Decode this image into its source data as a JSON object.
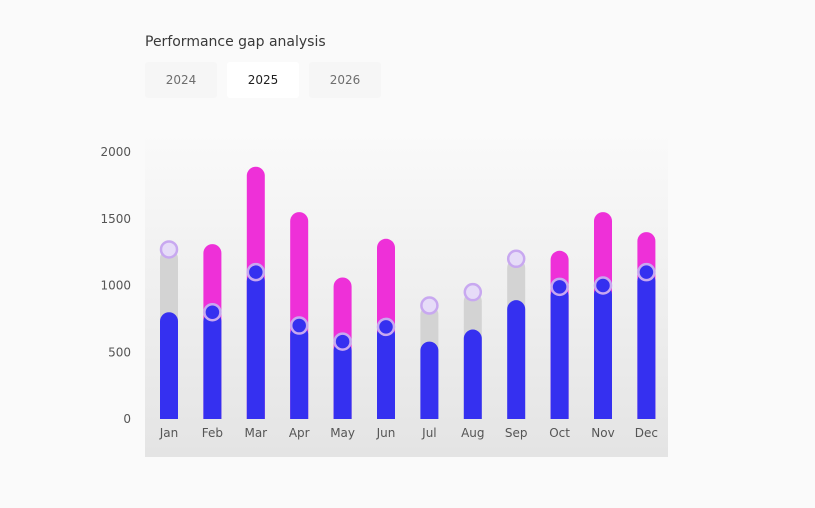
{
  "title": "Performance gap analysis",
  "tabs": [
    {
      "label": "2024",
      "active": false
    },
    {
      "label": "2025",
      "active": true
    },
    {
      "label": "2026",
      "active": false
    }
  ],
  "colors": {
    "actual": "#3530f0",
    "gap": "#ee30d8",
    "target_fill": "#d3d3d3",
    "marker_fill": "#e6dcf8",
    "marker_stroke": "#c8a8f0"
  },
  "chart_data": {
    "type": "bar",
    "categories": [
      "Jan",
      "Feb",
      "Mar",
      "Apr",
      "May",
      "Jun",
      "Jul",
      "Aug",
      "Sep",
      "Oct",
      "Nov",
      "Dec"
    ],
    "series": [
      {
        "values": [
          800,
          800,
          1100,
          700,
          580,
          700,
          580,
          670,
          890,
          990,
          1000,
          1100
        ]
      },
      {
        "values": [
          1270,
          1310,
          1890,
          1550,
          1060,
          1350,
          850,
          950,
          1200,
          1260,
          1550,
          1400
        ]
      }
    ],
    "markers": [
      1270,
      800,
      1100,
      700,
      580,
      690,
      850,
      950,
      1200,
      990,
      1000,
      1100
    ],
    "yticks": [
      "0",
      "500",
      "1000",
      "1500",
      "2000"
    ],
    "ylim": [
      0,
      2000
    ],
    "legend": "none",
    "grid": false
  }
}
